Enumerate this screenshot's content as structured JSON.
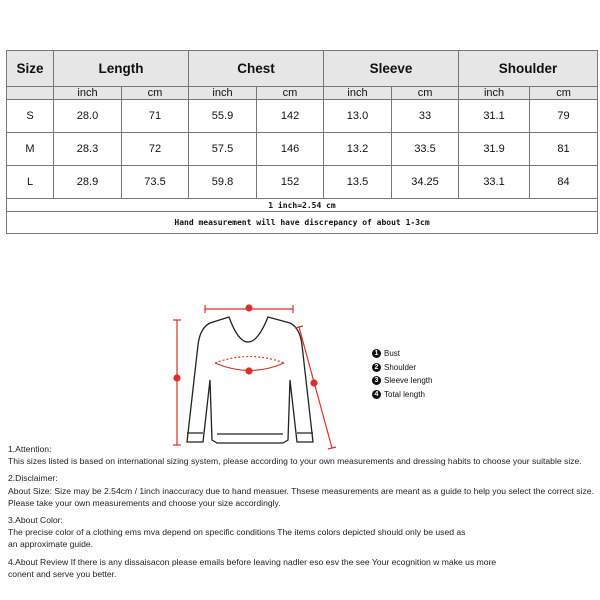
{
  "table": {
    "headers": [
      "Size",
      "Length",
      "Chest",
      "Sleeve",
      "Shoulder"
    ],
    "units": [
      "inch",
      "cm",
      "inch",
      "cm",
      "inch",
      "cm",
      "inch",
      "cm"
    ],
    "rows": [
      {
        "size": "S",
        "values": [
          "28.0",
          "71",
          "55.9",
          "142",
          "13.0",
          "33",
          "31.1",
          "79"
        ]
      },
      {
        "size": "M",
        "values": [
          "28.3",
          "72",
          "57.5",
          "146",
          "13.2",
          "33.5",
          "31.9",
          "81"
        ]
      },
      {
        "size": "L",
        "values": [
          "28.9",
          "73.5",
          "59.8",
          "152",
          "13.5",
          "34.25",
          "33.1",
          "84"
        ]
      }
    ],
    "conversion": "1 inch=2.54 cm",
    "note": "Hand measurement will have discrepancy of about 1-3cm"
  },
  "diagram": {
    "legend": [
      {
        "num": "1",
        "label": "Bust"
      },
      {
        "num": "2",
        "label": "Shoulder"
      },
      {
        "num": "3",
        "label": "Sleeve length"
      },
      {
        "num": "4",
        "label": "Total length"
      }
    ],
    "accent": "#d9302a"
  },
  "notes": [
    {
      "title": "1.Attention:",
      "lines": [
        "This sizes listed is based on international sizing system, please according to your own measurements and dressing habits to choose your suitable size."
      ]
    },
    {
      "title": "2.Disclaimer:",
      "lines": [
        "About Size: Size may be 2.54cm / 1inch inaccuracy due to hand measuer. Thsese measurements are meant as a guide to help you select the correct size.",
        "Please take your own measurements and choose your size accordingly."
      ]
    },
    {
      "title": "3.About Color:",
      "lines": [
        "The precise color of a clothing ems mva depend on specific conditions The items colors depicted should only be used as",
        "an approximate guide."
      ]
    },
    {
      "title": "",
      "lines": [
        "4.About Review If there is any dissaisacon please emails before leaving nadler eso esv the see Your ecognition w make us more",
        "conent and serve you better."
      ]
    }
  ]
}
